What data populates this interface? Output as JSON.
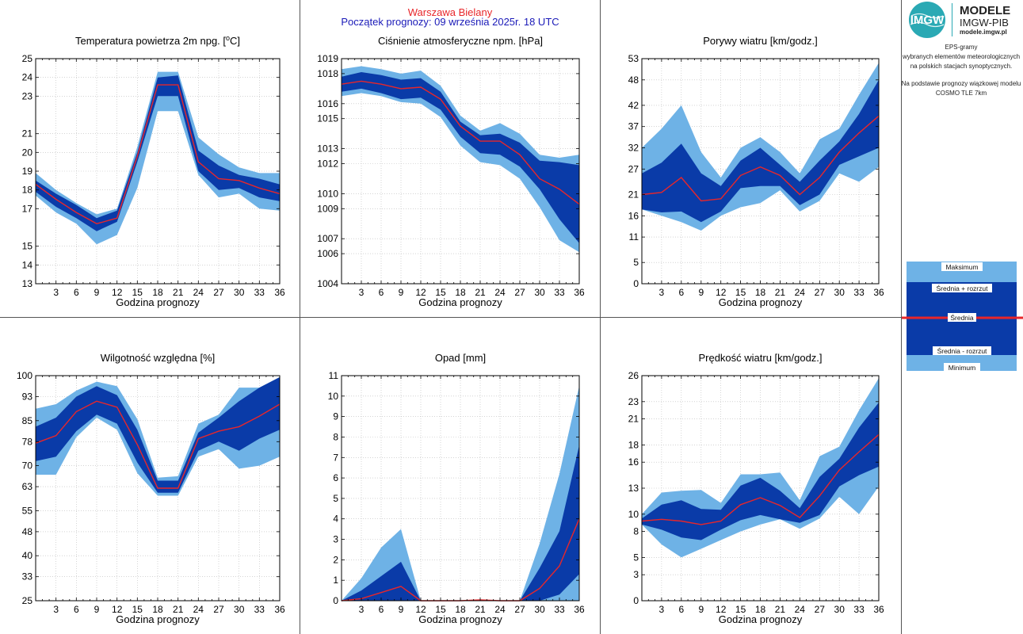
{
  "header": {
    "station": "Warszawa Bielany",
    "forecast_start": "Początek prognozy: 09 września 2025r. 18 UTC"
  },
  "sidebar": {
    "logo_text": "IMGW",
    "brand_line1": "MODELE",
    "brand_line2": "IMGW-PIB",
    "brand_url": "modele.imgw.pl",
    "description": [
      "EPS-gramy",
      "wybranych elementów meteorologicznych",
      "na polskich stacjach  synoptycznych.",
      "",
      "Na podstawie prognozy wiązkowej modelu",
      "COSMO TLE 7km"
    ],
    "legend": {
      "max": "Maksimum",
      "mean_plus": "Średnia + rozrzut",
      "mean": "Średnia",
      "mean_minus": "Średnia - rozrzut",
      "min": "Minimum"
    }
  },
  "colors": {
    "outer_band": "#6eb2e6",
    "inner_band": "#0a3ba8",
    "mean_line": "#e8262a",
    "station_title": "#e8262a",
    "forecast_title": "#1a1ab8",
    "grid": "#bbbbbb"
  },
  "chart_data": [
    {
      "id": "temperature",
      "type": "area",
      "title_prefix": "Temperatura powietrza 2m npg. [",
      "title_sup": "o",
      "title_suffix": "C]",
      "xlabel": "Godzina prognozy",
      "x": [
        0,
        3,
        6,
        9,
        12,
        15,
        18,
        21,
        24,
        27,
        30,
        33,
        36
      ],
      "x_ticks": [
        "3",
        "6",
        "9",
        "12",
        "15",
        "18",
        "21",
        "24",
        "27",
        "30",
        "33",
        "36"
      ],
      "ylim": [
        13,
        25
      ],
      "y_ticks": [
        "13",
        "14",
        "15",
        "17",
        "18",
        "19",
        "20",
        "21",
        "23",
        "24",
        "25"
      ],
      "series": {
        "max": [
          18.9,
          18.0,
          17.3,
          16.7,
          17.0,
          20.3,
          24.3,
          24.3,
          20.8,
          19.9,
          19.2,
          18.9,
          18.9
        ],
        "mean_plus": [
          18.5,
          17.8,
          17.2,
          16.5,
          16.9,
          20.0,
          24.0,
          24.1,
          20.1,
          19.3,
          18.8,
          18.6,
          18.3
        ],
        "mean": [
          18.3,
          17.5,
          16.8,
          16.2,
          16.5,
          19.8,
          23.6,
          23.6,
          19.5,
          18.6,
          18.5,
          18.1,
          17.8
        ],
        "mean_minus": [
          17.9,
          17.1,
          16.5,
          15.8,
          16.3,
          19.5,
          23.0,
          23.0,
          19.0,
          18.0,
          18.1,
          17.6,
          17.4
        ],
        "min": [
          17.7,
          16.8,
          16.2,
          15.1,
          15.6,
          18.1,
          22.2,
          22.2,
          18.8,
          17.6,
          17.8,
          17.0,
          16.9
        ]
      }
    },
    {
      "id": "pressure",
      "type": "area",
      "title_prefix": "Ciśnienie atmosferyczne npm. [hPa]",
      "title_sup": "",
      "title_suffix": "",
      "xlabel": "Godzina prognozy",
      "x": [
        0,
        3,
        6,
        9,
        12,
        15,
        18,
        21,
        24,
        27,
        30,
        33,
        36
      ],
      "x_ticks": [
        "3",
        "6",
        "9",
        "12",
        "15",
        "18",
        "21",
        "24",
        "27",
        "30",
        "33",
        "36"
      ],
      "ylim": [
        1004,
        1019
      ],
      "y_ticks": [
        "1004",
        "1006",
        "1007",
        "1009",
        "1010",
        "1012",
        "1013",
        "1015",
        "1016",
        "1018",
        "1019"
      ],
      "series": {
        "max": [
          1018.3,
          1018.5,
          1018.3,
          1018.0,
          1018.2,
          1017.2,
          1015.2,
          1014.2,
          1014.7,
          1014.0,
          1012.6,
          1012.4,
          1012.6
        ],
        "mean_plus": [
          1017.8,
          1018.1,
          1017.9,
          1017.6,
          1017.7,
          1016.8,
          1014.8,
          1013.9,
          1014.0,
          1013.4,
          1012.2,
          1012.1,
          1011.9
        ],
        "mean": [
          1017.3,
          1017.5,
          1017.3,
          1017.0,
          1017.1,
          1016.3,
          1014.5,
          1013.5,
          1013.5,
          1012.6,
          1011.0,
          1010.3,
          1009.3
        ],
        "mean_minus": [
          1016.8,
          1017.0,
          1016.7,
          1016.3,
          1016.4,
          1015.6,
          1013.8,
          1012.7,
          1012.6,
          1011.8,
          1010.3,
          1008.3,
          1006.7
        ],
        "min": [
          1016.5,
          1016.7,
          1016.5,
          1016.1,
          1016.0,
          1015.1,
          1013.2,
          1012.1,
          1011.9,
          1011.0,
          1009.1,
          1006.9,
          1006.1
        ]
      }
    },
    {
      "id": "gusts",
      "type": "area",
      "title_prefix": "Porywy wiatru [km/godz.]",
      "title_sup": "",
      "title_suffix": "",
      "xlabel": "Godzina prognozy",
      "x": [
        0,
        3,
        6,
        9,
        12,
        15,
        18,
        21,
        24,
        27,
        30,
        33,
        36
      ],
      "x_ticks": [
        "3",
        "6",
        "9",
        "12",
        "15",
        "18",
        "21",
        "24",
        "27",
        "30",
        "33",
        "36"
      ],
      "ylim": [
        0,
        53
      ],
      "y_ticks": [
        "0",
        "5",
        "11",
        "16",
        "21",
        "27",
        "32",
        "37",
        "42",
        "48",
        "53"
      ],
      "series": {
        "max": [
          32,
          36.5,
          42,
          31,
          25,
          32,
          34.5,
          31,
          26,
          34,
          36.5,
          44.5,
          52
        ],
        "mean_plus": [
          26,
          28.5,
          33,
          26,
          23,
          29,
          32,
          28,
          24,
          29,
          33.5,
          40,
          48
        ],
        "mean": [
          21,
          21.5,
          25,
          19.5,
          20,
          25.5,
          27.5,
          25.5,
          21,
          25,
          31,
          35.5,
          39.5
        ],
        "mean_minus": [
          17.5,
          16.8,
          17,
          14.5,
          17,
          22.5,
          23,
          23,
          18.5,
          21,
          28,
          30,
          32
        ],
        "min": [
          17.5,
          16,
          14.5,
          12.5,
          16,
          18,
          19,
          22,
          17,
          19.5,
          26,
          24,
          27.5
        ]
      }
    },
    {
      "id": "humidity",
      "type": "area",
      "title_prefix": "Wilgotność względna [%]",
      "title_sup": "",
      "title_suffix": "",
      "xlabel": "Godzina prognozy",
      "x": [
        0,
        3,
        6,
        9,
        12,
        15,
        18,
        21,
        24,
        27,
        30,
        33,
        36
      ],
      "x_ticks": [
        "3",
        "6",
        "9",
        "12",
        "15",
        "18",
        "21",
        "24",
        "27",
        "30",
        "33",
        "36"
      ],
      "ylim": [
        25,
        100
      ],
      "y_ticks": [
        "25",
        "33",
        "40",
        "48",
        "55",
        "63",
        "70",
        "78",
        "85",
        "93",
        "100"
      ],
      "series": {
        "max": [
          89,
          90.5,
          95,
          98,
          96.5,
          85.5,
          66,
          66.5,
          84,
          87,
          96,
          96,
          99.5
        ],
        "mean_plus": [
          83,
          86,
          93,
          96.5,
          93.5,
          82,
          65,
          65,
          81,
          86,
          91.5,
          96,
          99.5
        ],
        "mean": [
          77.5,
          80,
          88,
          91.5,
          89.5,
          77,
          62.5,
          62.5,
          79,
          81.5,
          83,
          86.5,
          90.5
        ],
        "mean_minus": [
          71.5,
          73,
          81.5,
          87,
          84,
          71,
          61,
          61,
          75,
          78,
          75,
          79,
          82
        ],
        "min": [
          67,
          67,
          79.5,
          86,
          82,
          67.5,
          60,
          60,
          73,
          75.5,
          69,
          70,
          73
        ]
      }
    },
    {
      "id": "precipitation",
      "type": "area",
      "title_prefix": "Opad [mm]",
      "title_sup": "",
      "title_suffix": "",
      "xlabel": "Godzina prognozy",
      "x": [
        0,
        3,
        6,
        9,
        12,
        15,
        18,
        21,
        24,
        27,
        30,
        33,
        36
      ],
      "x_ticks": [
        "3",
        "6",
        "9",
        "12",
        "15",
        "18",
        "21",
        "24",
        "27",
        "30",
        "33",
        "36"
      ],
      "ylim": [
        0,
        11
      ],
      "y_ticks": [
        "0",
        "1",
        "2",
        "3",
        "4",
        "5",
        "6",
        "7",
        "8",
        "9",
        "10",
        "11"
      ],
      "series": {
        "max": [
          0,
          1.1,
          2.6,
          3.5,
          0,
          0,
          0,
          0,
          0,
          0,
          2.8,
          6.2,
          10.5
        ],
        "mean_plus": [
          0,
          0.5,
          1.2,
          1.9,
          0,
          0,
          0,
          0,
          0,
          0,
          1.6,
          3.4,
          7.6
        ],
        "mean": [
          0,
          0.1,
          0.4,
          0.7,
          0,
          0,
          0,
          0.04,
          0,
          0,
          0.6,
          1.7,
          4.0
        ],
        "mean_minus": [
          0,
          0,
          0,
          0,
          0,
          0,
          0,
          0,
          0,
          0,
          0,
          0.3,
          1.3
        ],
        "min": [
          0,
          0,
          0,
          0,
          0,
          0,
          0,
          0,
          0,
          0,
          0,
          0,
          0
        ]
      }
    },
    {
      "id": "wind_speed",
      "type": "area",
      "title_prefix": "Prędkość wiatru [km/godz.]",
      "title_sup": "",
      "title_suffix": "",
      "xlabel": "Godzina prognozy",
      "x": [
        0,
        3,
        6,
        9,
        12,
        15,
        18,
        21,
        24,
        27,
        30,
        33,
        36
      ],
      "x_ticks": [
        "3",
        "6",
        "9",
        "12",
        "15",
        "18",
        "21",
        "24",
        "27",
        "30",
        "33",
        "36"
      ],
      "ylim": [
        0,
        26
      ],
      "y_ticks": [
        "0",
        "3",
        "5",
        "8",
        "10",
        "13",
        "16",
        "18",
        "21",
        "23",
        "26"
      ],
      "series": {
        "max": [
          10,
          12.5,
          12.7,
          12.8,
          11.3,
          14.6,
          14.6,
          14.8,
          11.6,
          16.7,
          17.8,
          22.0,
          25.7
        ],
        "mean_plus": [
          9.5,
          11.1,
          11.6,
          10.6,
          10.5,
          13.3,
          14.2,
          12.7,
          10.7,
          14.3,
          16.4,
          20.0,
          22.9
        ],
        "mean": [
          9.2,
          9.4,
          9.2,
          8.8,
          9.2,
          11.1,
          11.9,
          11.0,
          9.6,
          12.1,
          15.1,
          17.2,
          19.2
        ],
        "mean_minus": [
          8.8,
          8.2,
          7.3,
          7.0,
          8.2,
          9.3,
          9.9,
          9.4,
          9.0,
          9.9,
          13.2,
          14.5,
          15.5
        ],
        "min": [
          8.8,
          6.5,
          5.0,
          6.0,
          7.0,
          8.0,
          8.8,
          9.4,
          8.3,
          9.5,
          12.0,
          10.0,
          13.2
        ]
      }
    }
  ]
}
